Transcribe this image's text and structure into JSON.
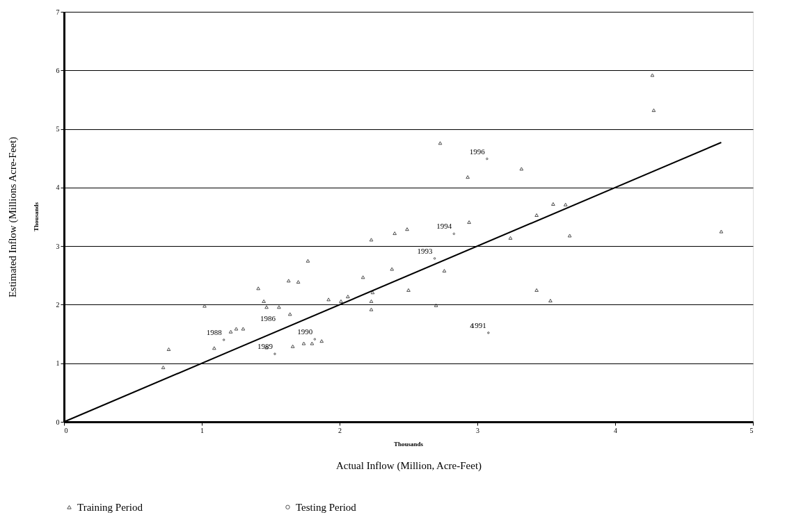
{
  "chart_data": {
    "type": "scatter",
    "xlabel": "Actual Inflow (Million, Acre-Feet)",
    "ylabel": "Estimated Inflow (Millions Acre-Feet)",
    "xlim": [
      0,
      5
    ],
    "xticks": [
      0,
      1,
      2,
      3,
      4,
      5
    ],
    "ylim": [
      0,
      7
    ],
    "yticks": [
      0,
      1,
      2,
      3,
      4,
      5,
      6,
      7
    ],
    "grid": "y",
    "legend": "bottom",
    "series": [
      {
        "name": "Training Period",
        "marker": "triangle",
        "color": "#000000",
        "x": [
          0.72,
          0.76,
          1.02,
          1.09,
          1.21,
          1.25,
          1.3,
          1.41,
          1.45,
          1.47,
          1.56,
          1.63,
          1.7,
          1.77,
          1.64,
          1.47,
          1.66,
          1.74,
          1.8,
          1.87,
          1.92,
          2.01,
          2.06,
          2.17,
          2.23,
          2.23,
          2.24,
          2.38,
          2.4,
          2.49,
          2.23,
          2.5,
          2.7,
          2.76,
          2.73,
          2.93,
          2.94,
          3.24,
          3.32,
          3.43,
          3.43,
          3.53,
          3.55,
          3.64,
          3.67,
          2.96,
          4.27,
          4.28,
          4.77
        ],
        "values": [
          0.93,
          1.24,
          1.98,
          1.26,
          1.54,
          1.59,
          1.59,
          2.28,
          2.06,
          1.96,
          1.96,
          2.41,
          2.39,
          2.75,
          1.84,
          1.27,
          1.29,
          1.34,
          1.34,
          1.38,
          2.09,
          2.06,
          2.14,
          2.47,
          2.06,
          1.92,
          2.21,
          2.61,
          3.22,
          3.29,
          3.11,
          2.25,
          1.99,
          2.58,
          4.76,
          4.18,
          3.41,
          3.14,
          4.32,
          3.53,
          2.25,
          2.07,
          3.72,
          3.71,
          3.18,
          1.64,
          5.92,
          5.32,
          3.25
        ]
      },
      {
        "name": "Testing Period",
        "marker": "circle",
        "color": "#000000",
        "x": [
          1.16,
          1.53,
          1.82,
          2.69,
          2.83,
          3.07,
          3.08
        ],
        "values": [
          1.4,
          1.16,
          1.41,
          2.79,
          3.21,
          4.49,
          1.52
        ]
      },
      {
        "type": "line",
        "color": "#000000",
        "x": [
          0,
          4.77
        ],
        "values": [
          0,
          4.77
        ]
      }
    ],
    "annotations": [
      "Thousands",
      "Thousands",
      "1986",
      {
        "text": "1988",
        "x": 1.16,
        "y": 1.4
      },
      {
        "text": "1989",
        "x": 1.53,
        "y": 1.16
      },
      {
        "text": "1990",
        "x": 1.82,
        "y": 1.41
      },
      {
        "text": "1993",
        "x": 2.69,
        "y": 2.79
      },
      {
        "text": "1994",
        "x": 2.83,
        "y": 3.21
      },
      {
        "text": "1996",
        "x": 3.07,
        "y": 4.49
      },
      {
        "text": "1991",
        "x": 3.08,
        "y": 1.52
      }
    ]
  }
}
